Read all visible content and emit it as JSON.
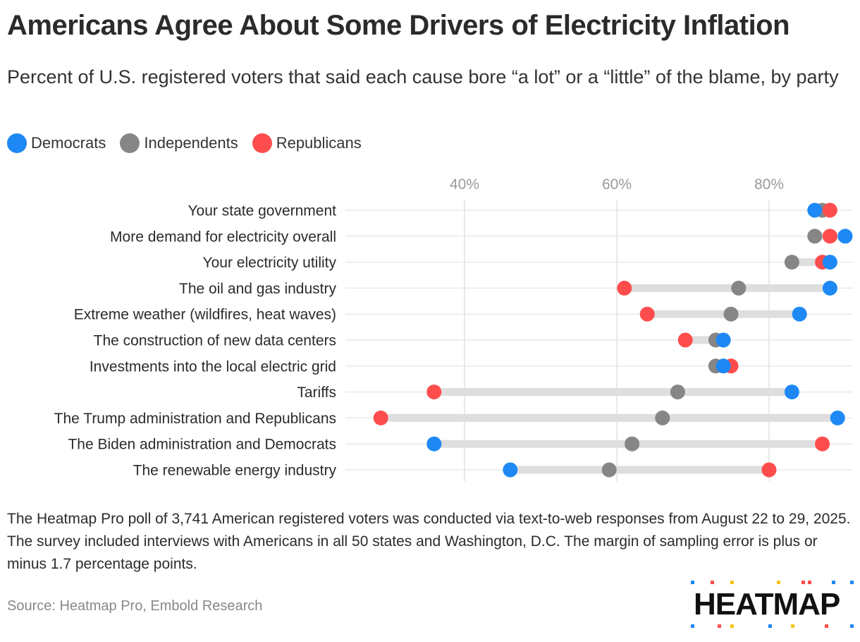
{
  "title": "Americans Agree About Some Drivers of Electricity Inflation",
  "subtitle": "Percent of U.S. registered voters that said each cause bore “a lot” or a “little” of the blame, by party",
  "legend": [
    {
      "label": "Democrats",
      "color": "#1e88f5"
    },
    {
      "label": "Independents",
      "color": "#868686"
    },
    {
      "label": "Republicans",
      "color": "#ff4d4d"
    }
  ],
  "chart_data": {
    "type": "scatter",
    "variant": "dot-plot",
    "categories": [
      "Your state government",
      "More demand for electricity overall",
      "Your electricity utility",
      "The oil and gas industry",
      "Extreme weather (wildfires, heat waves)",
      "The construction of new data centers",
      "Investments into the local electric grid",
      "Tariffs",
      "The Trump administration and Republicans",
      "The Biden administration and Democrats",
      "The renewable energy industry"
    ],
    "series": [
      {
        "name": "Democrats",
        "color": "#1e88f5",
        "values": [
          86,
          90,
          88,
          88,
          84,
          74,
          74,
          83,
          89,
          36,
          46
        ]
      },
      {
        "name": "Independents",
        "color": "#868686",
        "values": [
          87,
          86,
          83,
          76,
          75,
          73,
          73,
          68,
          66,
          62,
          59
        ]
      },
      {
        "name": "Republicans",
        "color": "#ff4d4d",
        "values": [
          88,
          88,
          87,
          61,
          64,
          69,
          75,
          36,
          29,
          87,
          80
        ]
      }
    ],
    "x_ticks": [
      40,
      60,
      80
    ],
    "x_tick_labels": [
      "40%",
      "60%",
      "80%"
    ],
    "xlim": [
      23,
      91
    ],
    "grid": true,
    "legend_position": "top-left"
  },
  "note": "The Heatmap Pro poll of 3,741 American registered voters was conducted via text-to-web responses from August 22 to 29, 2025. The survey included interviews with Americans in all 50 states and Washington, D.C. The margin of sampling error is plus or minus 1.7 percentage points.",
  "source": "Source: Heatmap Pro, Embold Research",
  "logo": {
    "text": "HEATMAP"
  }
}
